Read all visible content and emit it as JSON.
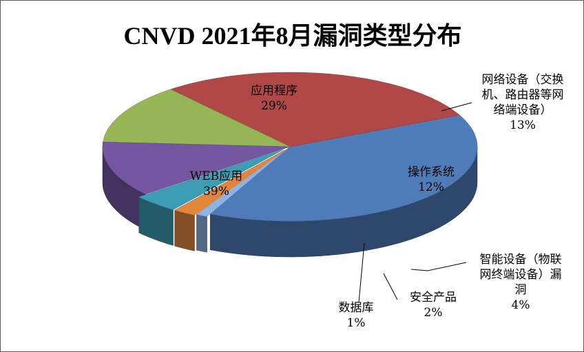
{
  "chart_data": {
    "type": "pie",
    "title": "CNVD 2021年8月漏洞类型分布",
    "style": "3d-exploded-slices",
    "slices": [
      {
        "label": "WEB应用",
        "value": 39,
        "pct_text": "39%",
        "color": "#4F7CB8"
      },
      {
        "label": "应用程序",
        "value": 29,
        "pct_text": "29%",
        "color": "#B14848"
      },
      {
        "label": "网络设备（交换机、路由器等网络端设备）",
        "label_lines": [
          "网络设备（交换",
          "机、路由器等网",
          "络端设备）"
        ],
        "value": 13,
        "pct_text": "13%",
        "color": "#96B554"
      },
      {
        "label": "操作系统",
        "value": 12,
        "pct_text": "12%",
        "color": "#7457A0"
      },
      {
        "label": "智能设备（物联网终端设备）漏洞",
        "label_lines": [
          "智能设备（物联",
          "网终端设备）漏",
          "洞"
        ],
        "value": 4,
        "pct_text": "4%",
        "color": "#3C9DB4"
      },
      {
        "label": "安全产品",
        "value": 2,
        "pct_text": "2%",
        "color": "#E1873C"
      },
      {
        "label": "数据库",
        "value": 1,
        "pct_text": "1%",
        "color": "#8EB4E3"
      }
    ]
  }
}
